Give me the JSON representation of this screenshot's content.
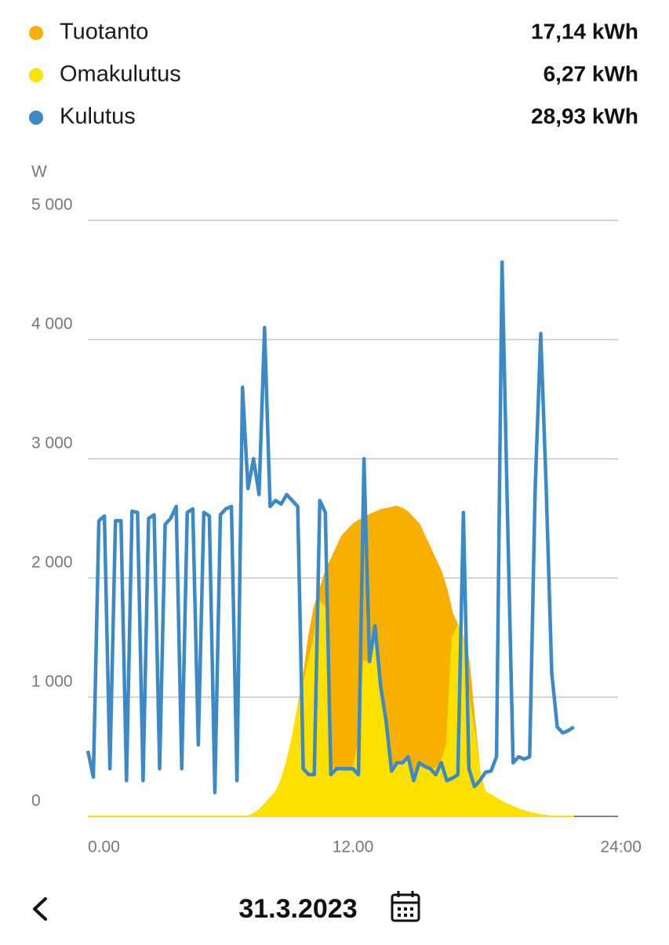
{
  "chart_data": {
    "type": "area",
    "y_label": "W",
    "xlim": [
      0,
      24
    ],
    "xticks": [
      {
        "value": 0,
        "label": "0.00"
      },
      {
        "value": 12,
        "label": "12.00"
      },
      {
        "value": 24,
        "label": "24:00"
      }
    ],
    "ylim": [
      0,
      5000
    ],
    "yticks": [
      0,
      {
        "value": 1000,
        "label": "1 000"
      },
      {
        "value": 2000,
        "label": "2 000"
      },
      {
        "value": 3000,
        "label": "3 000"
      },
      {
        "value": 4000,
        "label": "4 000"
      },
      {
        "value": 5000,
        "label": "5 000"
      }
    ],
    "grid": true,
    "x": [
      0,
      0.25,
      0.5,
      0.75,
      1,
      1.25,
      1.5,
      1.75,
      2,
      2.25,
      2.5,
      2.75,
      3,
      3.25,
      3.5,
      3.75,
      4,
      4.25,
      4.5,
      4.75,
      5,
      5.25,
      5.5,
      5.75,
      6,
      6.25,
      6.5,
      6.75,
      7,
      7.25,
      7.5,
      7.75,
      8,
      8.25,
      8.5,
      8.75,
      9,
      9.25,
      9.5,
      9.75,
      10,
      10.25,
      10.5,
      10.75,
      11,
      11.25,
      11.5,
      11.75,
      12,
      12.25,
      12.5,
      12.75,
      13,
      13.25,
      13.5,
      13.75,
      14,
      14.25,
      14.5,
      14.75,
      15,
      15.25,
      15.5,
      15.75,
      16,
      16.25,
      16.5,
      16.75,
      17,
      17.25,
      17.5,
      17.75,
      18,
      18.25,
      18.5,
      18.75,
      19,
      19.25,
      19.5,
      19.75,
      20,
      20.25,
      20.5,
      20.75,
      21,
      21.25,
      21.5,
      21.75,
      22
    ],
    "series": [
      {
        "name": "Tuotanto",
        "total": "17,14 kWh",
        "color": "#f7b000",
        "mark": "area",
        "values": [
          0,
          0,
          0,
          0,
          0,
          0,
          0,
          0,
          0,
          0,
          0,
          0,
          0,
          0,
          0,
          0,
          0,
          0,
          0,
          0,
          0,
          0,
          0,
          0,
          0,
          0,
          0,
          0,
          0,
          0,
          20,
          50,
          100,
          150,
          200,
          300,
          450,
          650,
          900,
          1150,
          1500,
          1750,
          1900,
          2050,
          2150,
          2250,
          2350,
          2400,
          2450,
          2480,
          2500,
          2530,
          2550,
          2570,
          2580,
          2590,
          2600,
          2580,
          2550,
          2500,
          2450,
          2350,
          2250,
          2150,
          2050,
          1900,
          1700,
          1600,
          1500,
          1300,
          800,
          350,
          200,
          180,
          150,
          120,
          100,
          80,
          60,
          45,
          30,
          20,
          10,
          5,
          0,
          0,
          0,
          0,
          0
        ]
      },
      {
        "name": "Omakulutus",
        "total": "6,27 kWh",
        "color": "#fbe000",
        "mark": "area",
        "values": [
          0,
          0,
          0,
          0,
          0,
          0,
          0,
          0,
          0,
          0,
          0,
          0,
          0,
          0,
          0,
          0,
          0,
          0,
          0,
          0,
          0,
          0,
          0,
          0,
          0,
          0,
          0,
          0,
          0,
          0,
          20,
          50,
          100,
          150,
          200,
          300,
          450,
          650,
          900,
          1100,
          1300,
          1500,
          1800,
          1750,
          400,
          400,
          400,
          400,
          400,
          600,
          1300,
          1300,
          1500,
          1100,
          800,
          400,
          450,
          450,
          480,
          350,
          450,
          420,
          400,
          400,
          450,
          600,
          1500,
          1600,
          1500,
          1000,
          700,
          350,
          200,
          180,
          150,
          120,
          100,
          80,
          60,
          45,
          30,
          20,
          10,
          5,
          0,
          0,
          0,
          0,
          0
        ]
      },
      {
        "name": "Kulutus",
        "total": "28,93 kWh",
        "color": "#3b89c6",
        "mark": "line",
        "values": [
          550,
          330,
          2480,
          2520,
          400,
          2480,
          2480,
          300,
          2560,
          2550,
          300,
          2500,
          2530,
          400,
          2450,
          2500,
          2600,
          400,
          2550,
          2580,
          600,
          2550,
          2520,
          200,
          2530,
          2580,
          2600,
          300,
          3600,
          2750,
          3000,
          2700,
          4100,
          2600,
          2650,
          2620,
          2700,
          2650,
          2600,
          400,
          350,
          350,
          2650,
          2550,
          350,
          400,
          400,
          400,
          400,
          350,
          3000,
          1300,
          1600,
          1100,
          800,
          380,
          450,
          450,
          500,
          300,
          450,
          420,
          400,
          350,
          450,
          300,
          320,
          350,
          2550,
          400,
          250,
          300,
          370,
          380,
          500,
          4650,
          2500,
          450,
          500,
          480,
          500,
          2750,
          4050,
          2750,
          1200,
          750,
          700,
          720,
          750
        ]
      }
    ]
  },
  "footer": {
    "date": "31.3.2023"
  }
}
